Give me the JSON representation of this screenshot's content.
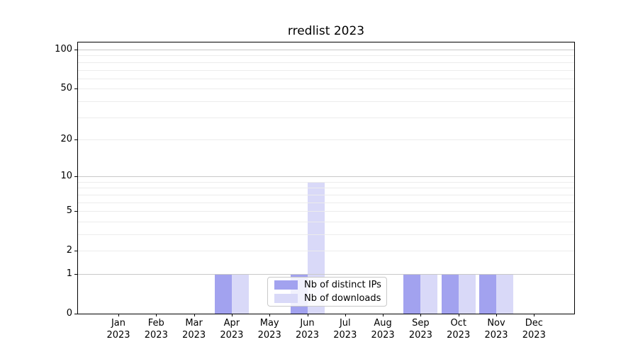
{
  "chart_data": {
    "type": "bar",
    "title": "rredlist 2023",
    "categories": [
      "Jan",
      "Feb",
      "Mar",
      "Apr",
      "May",
      "Jun",
      "Jul",
      "Aug",
      "Sep",
      "Oct",
      "Nov",
      "Dec"
    ],
    "x_year_label": "2023",
    "series": [
      {
        "name": "Nb of distinct IPs",
        "color": "#a2a2ef",
        "values": [
          0,
          0,
          0,
          1,
          0,
          1,
          0,
          0,
          1,
          1,
          1,
          0
        ]
      },
      {
        "name": "Nb of downloads",
        "color": "#d9d9f8",
        "values": [
          0,
          0,
          0,
          1,
          0,
          9,
          0,
          0,
          1,
          1,
          1,
          0
        ]
      }
    ],
    "y_scale": "log1p",
    "ylim": [
      0,
      113.4
    ],
    "y_ticks": [
      0,
      1,
      2,
      5,
      10,
      20,
      50,
      100
    ],
    "grid": {
      "minor_values": [
        2,
        3,
        4,
        5,
        6,
        7,
        8,
        9,
        20,
        30,
        40,
        50,
        60,
        70,
        80,
        90
      ],
      "major_values": [
        1,
        10,
        100
      ],
      "minor_color": "#ececec",
      "major_color": "#c8c8c8"
    },
    "legend": {
      "position": "lower center",
      "entries": [
        "Nb of distinct IPs",
        "Nb of downloads"
      ]
    }
  },
  "colors": {
    "background": "#ffffff",
    "spine": "#000000",
    "text": "#000000"
  }
}
